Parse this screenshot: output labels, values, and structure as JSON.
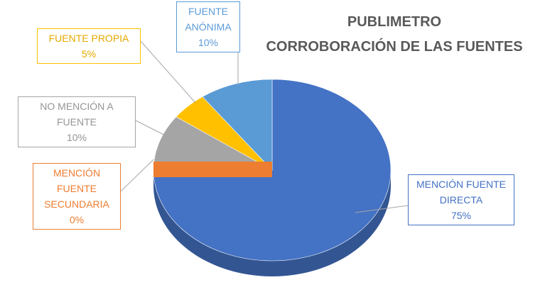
{
  "chart_data": {
    "type": "pie3d",
    "title": "PUBLIMETRO",
    "subtitle": "CORROBORACIÓN DE LAS FUENTES",
    "categories": [
      "MENCIÓN FUENTE DIRECTA",
      "MENCIÓN FUENTE SECUNDARIA",
      "NO MENCIÓN A FUENTE",
      "FUENTE PROPIA",
      "FUENTE ANÓNIMA"
    ],
    "values": [
      75,
      0,
      10,
      5,
      10
    ],
    "value_labels": [
      "75%",
      "0%",
      "10%",
      "5%",
      "10%"
    ],
    "colors": [
      "#4472c4",
      "#ed7d31",
      "#a5a5a5",
      "#ffc000",
      "#5b9bd5"
    ]
  }
}
